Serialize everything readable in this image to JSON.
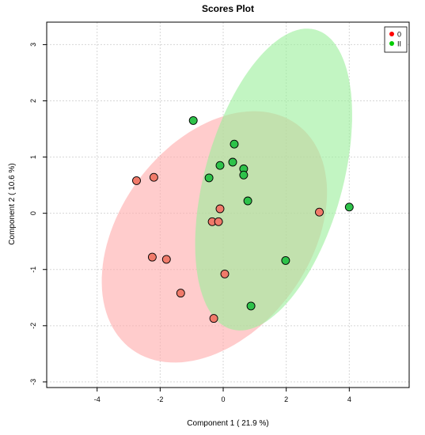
{
  "chart_data": {
    "type": "scatter",
    "title": "Scores Plot",
    "xlabel": "Component 1 ( 21.9 %)",
    "ylabel": "Component 2 ( 10.6 %)",
    "xlim": [
      -5.6,
      5.9
    ],
    "ylim": [
      -3.1,
      3.4
    ],
    "x_ticks": [
      -4,
      -2,
      0,
      2,
      4
    ],
    "y_ticks": [
      -3,
      -2,
      -1,
      0,
      1,
      2,
      3
    ],
    "grid": true,
    "legend_position": "top-right",
    "series": [
      {
        "name": "0",
        "color": "#ff0000",
        "point_color": "#f07a6a",
        "ellipse_color": "#ffaaaa",
        "points": [
          {
            "x": -2.75,
            "y": 0.58
          },
          {
            "x": -2.2,
            "y": 0.64
          },
          {
            "x": -2.25,
            "y": -0.78
          },
          {
            "x": -1.8,
            "y": -0.82
          },
          {
            "x": -1.35,
            "y": -1.42
          },
          {
            "x": -0.35,
            "y": -0.15
          },
          {
            "x": -0.15,
            "y": -0.15
          },
          {
            "x": -0.1,
            "y": 0.08
          },
          {
            "x": 0.05,
            "y": -1.08
          },
          {
            "x": -0.3,
            "y": -1.87
          },
          {
            "x": 3.05,
            "y": 0.02
          }
        ],
        "ellipse": {
          "cx": -0.28,
          "cy": -0.42,
          "rx": 3.7,
          "ry": 2.02,
          "angle_deg": -18
        }
      },
      {
        "name": "II",
        "color": "#00cc00",
        "point_color": "#2ec24a",
        "ellipse_color": "#99ee99",
        "points": [
          {
            "x": -0.95,
            "y": 1.65
          },
          {
            "x": 0.35,
            "y": 1.23
          },
          {
            "x": -0.1,
            "y": 0.85
          },
          {
            "x": 0.3,
            "y": 0.91
          },
          {
            "x": 0.65,
            "y": 0.79
          },
          {
            "x": -0.45,
            "y": 0.63
          },
          {
            "x": 0.65,
            "y": 0.68
          },
          {
            "x": 0.78,
            "y": 0.22
          },
          {
            "x": 1.98,
            "y": -0.84
          },
          {
            "x": 0.88,
            "y": -1.65
          },
          {
            "x": 4.0,
            "y": 0.11
          }
        ],
        "ellipse": {
          "cx": 1.6,
          "cy": 0.6,
          "rx": 3.1,
          "ry": 1.95,
          "angle_deg": -50
        }
      }
    ]
  }
}
